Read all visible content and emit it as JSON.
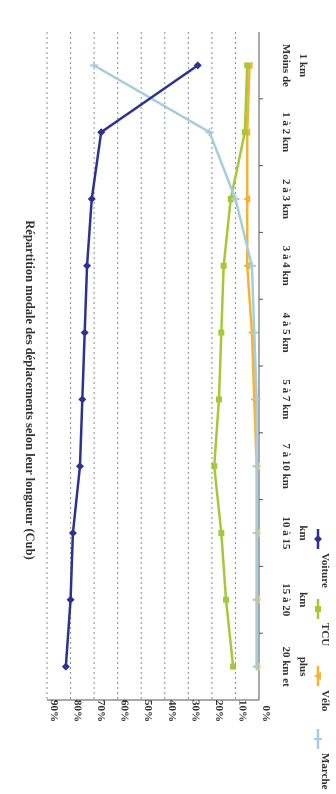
{
  "chart_data": {
    "type": "line",
    "title": "Répartition modale des déplacements selon leur longueur (Cub)",
    "categories": [
      [
        "Moins de",
        "1 km"
      ],
      [
        "1 à 2 km"
      ],
      [
        "2 à 3 km"
      ],
      [
        "3 à 4 km"
      ],
      [
        "4 à 5 km"
      ],
      [
        "5 à 7 km"
      ],
      [
        "7 à 10 km"
      ],
      [
        "10 à 15",
        "km"
      ],
      [
        "15 à 20",
        "km"
      ],
      [
        "20 km et",
        "plus"
      ]
    ],
    "ylim": [
      0,
      90
    ],
    "yticks": [
      "0%",
      "10%",
      "20%",
      "30%",
      "40%",
      "50%",
      "60%",
      "70%",
      "80%",
      "90%"
    ],
    "grid": true,
    "legend_position": "bottom",
    "series": [
      {
        "name": "Voiture",
        "color": "#2e3192",
        "marker": "diamond",
        "values": [
          26,
          67,
          71,
          73,
          74,
          75,
          76,
          79,
          80,
          82
        ]
      },
      {
        "name": "TCU",
        "color": "#a6c837",
        "marker": "square",
        "values": [
          5,
          6,
          12,
          15,
          16,
          17,
          19,
          16,
          14,
          11
        ]
      },
      {
        "name": "Vélo",
        "color": "#f5b335",
        "marker": "triangle",
        "values": [
          4,
          5,
          5,
          5,
          3,
          2,
          1,
          1,
          1,
          1
        ]
      },
      {
        "name": "Marche",
        "color": "#a6cdd9",
        "marker": "cross",
        "values": [
          70,
          21,
          10,
          3,
          2,
          1,
          1,
          1,
          1,
          1
        ]
      }
    ]
  }
}
